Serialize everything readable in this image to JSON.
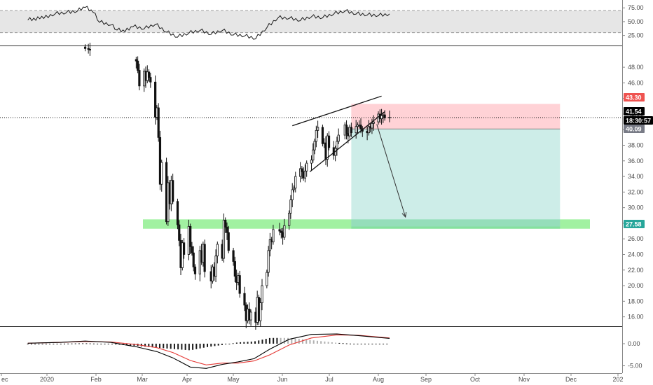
{
  "chart_data": {
    "type": "candlestick",
    "x_axis": {
      "ticks": [
        "ec",
        "2020",
        "Feb",
        "Mar",
        "Apr",
        "May",
        "Jun",
        "Jul",
        "Aug",
        "Sep",
        "Oct",
        "Nov",
        "Dec",
        "202"
      ]
    },
    "price_panel": {
      "y_axis": {
        "ticks": [
          "48.00",
          "46.00",
          "44.00",
          "42.00",
          "40.00",
          "38.00",
          "36.00",
          "34.00",
          "32.00",
          "30.00",
          "28.00",
          "26.00",
          "24.00",
          "22.00",
          "20.00",
          "18.00",
          "16.00"
        ],
        "ylim": [
          14.8,
          50.7
        ]
      },
      "price_labels": [
        {
          "text": "43.30",
          "value": 43.3,
          "color": "#ef5350"
        },
        {
          "text": "41.54",
          "value": 41.54,
          "color": "#000000"
        },
        {
          "text": "18:30:57",
          "value": 40.75,
          "color": "#000000"
        },
        {
          "text": "40.09",
          "value": 40.09,
          "color": "#787b86"
        },
        {
          "text": "27.58",
          "value": 27.58,
          "color": "#26a69a"
        }
      ],
      "support_zone": {
        "low": 27.3,
        "high": 28.5,
        "color": "#90ee90"
      },
      "short_position": {
        "entry": 40.09,
        "stop": 43.3,
        "target": 27.58,
        "start": "Jul 10",
        "end": "Nov 18",
        "risk_color": "#ffcdd2",
        "reward_color": "#c8ebe5"
      },
      "wedge_upper": [
        [
          "Jun 3",
          40.5
        ],
        [
          "Jul 29",
          44.3
        ]
      ],
      "wedge_lower": [
        [
          "Jun 14",
          34.6
        ],
        [
          "Jul 31",
          42.3
        ]
      ],
      "projection_arrow": [
        [
          "Jul 26",
          40.7
        ],
        [
          "Aug 13",
          28.8
        ]
      ],
      "current_price_line": 41.54,
      "close_series": [
        [
          "Jan 25",
          50.4
        ],
        [
          "Jan 27",
          50.3
        ],
        [
          "Jan 28",
          50.2
        ],
        [
          "Feb 26",
          48.8
        ],
        [
          "Feb 27",
          47.6
        ],
        [
          "Feb 28",
          45.6
        ],
        [
          "Mar 2",
          47.5
        ],
        [
          "Mar 3",
          46.3
        ],
        [
          "Mar 4",
          47.4
        ],
        [
          "Mar 5",
          46.7
        ],
        [
          "Mar 6",
          46.1
        ],
        [
          "Mar 9",
          41.6
        ],
        [
          "Mar 10",
          42.8
        ],
        [
          "Mar 11",
          39.0
        ],
        [
          "Mar 12",
          33.0
        ],
        [
          "Mar 13",
          35.8
        ],
        [
          "Mar 16",
          28.2
        ],
        [
          "Mar 17",
          33.2
        ],
        [
          "Mar 18",
          30.5
        ],
        [
          "Mar 19",
          33.5
        ],
        [
          "Mar 20",
          30.8
        ],
        [
          "Mar 23",
          27.8
        ],
        [
          "Mar 24",
          25.8
        ],
        [
          "Mar 25",
          22.3
        ],
        [
          "Mar 26",
          25.5
        ],
        [
          "Mar 27",
          24.0
        ],
        [
          "Mar 30",
          27.6
        ],
        [
          "Mar 31",
          25.0
        ],
        [
          "Apr 1",
          24.2
        ],
        [
          "Apr 2",
          22.4
        ],
        [
          "Apr 3",
          21.5
        ],
        [
          "Apr 6",
          24.5
        ],
        [
          "Apr 7",
          23.0
        ],
        [
          "Apr 8",
          25.3
        ],
        [
          "Apr 9",
          21.8
        ],
        [
          "Apr 13",
          20.6
        ],
        [
          "Apr 14",
          22.4
        ],
        [
          "Apr 15",
          21.2
        ],
        [
          "Apr 16",
          23.8
        ],
        [
          "Apr 17",
          25.3
        ],
        [
          "Apr 20",
          23.5
        ],
        [
          "Apr 21",
          28.4
        ],
        [
          "Apr 22",
          27.5
        ],
        [
          "Apr 23",
          26.8
        ],
        [
          "Apr 24",
          24.5
        ],
        [
          "Apr 27",
          23.1
        ],
        [
          "Apr 28",
          21.2
        ],
        [
          "Apr 29",
          20.4
        ],
        [
          "Apr 30",
          21.3
        ],
        [
          "May 1",
          19.0
        ],
        [
          "May 4",
          17.5
        ],
        [
          "May 5",
          15.5
        ],
        [
          "May 6",
          17.0
        ],
        [
          "May 7",
          15.6
        ],
        [
          "May 8",
          16.6
        ],
        [
          "May 11",
          15.3
        ],
        [
          "May 12",
          18.5
        ],
        [
          "May 13",
          15.5
        ],
        [
          "May 14",
          17.8
        ],
        [
          "May 15",
          20.0
        ],
        [
          "May 18",
          21.7
        ],
        [
          "May 19",
          24.5
        ],
        [
          "May 20",
          25.9
        ],
        [
          "May 21",
          25.6
        ],
        [
          "May 22",
          27.2
        ],
        [
          "May 26",
          27.0
        ],
        [
          "May 27",
          26.8
        ],
        [
          "May 28",
          26.2
        ],
        [
          "May 29",
          27.7
        ],
        [
          "Jun 1",
          29.3
        ],
        [
          "Jun 2",
          31.0
        ],
        [
          "Jun 3",
          32.3
        ],
        [
          "Jun 4",
          32.5
        ],
        [
          "Jun 5",
          34.0
        ],
        [
          "Jun 8",
          35.0
        ],
        [
          "Jun 9",
          34.6
        ],
        [
          "Jun 10",
          33.8
        ],
        [
          "Jun 11",
          34.7
        ],
        [
          "Jun 12",
          35.7
        ],
        [
          "Jun 15",
          36.1
        ],
        [
          "Jun 16",
          37.4
        ],
        [
          "Jun 17",
          38.5
        ],
        [
          "Jun 18",
          39.9
        ],
        [
          "Jun 19",
          40.3
        ],
        [
          "Jun 22",
          38.2
        ],
        [
          "Jun 23",
          38.3
        ],
        [
          "Jun 24",
          36.2
        ],
        [
          "Jun 25",
          39.2
        ],
        [
          "Jun 26",
          37.7
        ],
        [
          "Jun 29",
          36.7
        ],
        [
          "Jun 30",
          37.6
        ],
        [
          "Jul 1",
          38.5
        ],
        [
          "Jul 2",
          39.3
        ],
        [
          "Jul 6",
          40.6
        ],
        [
          "Jul 7",
          39.5
        ],
        [
          "Jul 8",
          39.2
        ],
        [
          "Jul 9",
          40.3
        ],
        [
          "Jul 10",
          39.6
        ],
        [
          "Jul 13",
          40.4
        ],
        [
          "Jul 14",
          40.6
        ],
        [
          "Jul 15",
          40.6
        ],
        [
          "Jul 16",
          40.1
        ],
        [
          "Jul 17",
          39.8
        ],
        [
          "Jul 20",
          39.6
        ],
        [
          "Jul 21",
          40.4
        ],
        [
          "Jul 22",
          40.2
        ],
        [
          "Jul 23",
          40.8
        ],
        [
          "Jul 24",
          41.0
        ],
        [
          "Jul 27",
          42.0
        ],
        [
          "Jul 28",
          41.4
        ],
        [
          "Jul 29",
          41.8
        ],
        [
          "Jul 30",
          41.9
        ],
        [
          "Jul 31",
          41.5
        ],
        [
          "Aug 3",
          41.6
        ]
      ]
    },
    "rsi_panel": {
      "y_axis": {
        "ticks": [
          "75.00",
          "50.00",
          "25.00"
        ],
        "ylim": [
          8,
          88
        ]
      },
      "band": [
        30,
        70
      ],
      "series": [
        [
          "Dec 20",
          54
        ],
        [
          "Dec 30",
          57
        ],
        [
          "Jan 6",
          65
        ],
        [
          "Jan 13",
          67
        ],
        [
          "Jan 20",
          70
        ],
        [
          "Jan 25",
          77
        ],
        [
          "Jan 30",
          68
        ],
        [
          "Feb 3",
          50
        ],
        [
          "Feb 10",
          45
        ],
        [
          "Feb 14",
          36
        ],
        [
          "Feb 19",
          33
        ],
        [
          "Feb 24",
          42
        ],
        [
          "Mar 2",
          38
        ],
        [
          "Mar 9",
          46
        ],
        [
          "Mar 16",
          32
        ],
        [
          "Mar 23",
          23
        ],
        [
          "Mar 30",
          30
        ],
        [
          "Apr 6",
          35
        ],
        [
          "Apr 13",
          28
        ],
        [
          "Apr 20",
          35
        ],
        [
          "Apr 27",
          27
        ],
        [
          "May 4",
          25
        ],
        [
          "May 11",
          20
        ],
        [
          "May 18",
          40
        ],
        [
          "May 25",
          58
        ],
        [
          "Jun 1",
          57
        ],
        [
          "Jun 8",
          53
        ],
        [
          "Jun 15",
          60
        ],
        [
          "Jun 22",
          58
        ],
        [
          "Jun 29",
          65
        ],
        [
          "Jul 6",
          70
        ],
        [
          "Jul 13",
          65
        ],
        [
          "Jul 20",
          63
        ],
        [
          "Jul 27",
          62
        ],
        [
          "Aug 3",
          64
        ]
      ]
    },
    "macd_panel": {
      "y_axis": {
        "ticks": [
          "0.00",
          "-5.00"
        ],
        "ylim": [
          -6.5,
          3.8
        ]
      },
      "macd": [
        [
          "Dec 20",
          0.1
        ],
        [
          "Jan 10",
          0.3
        ],
        [
          "Jan 25",
          0.6
        ],
        [
          "Feb 10",
          0.3
        ],
        [
          "Feb 26",
          -0.7
        ],
        [
          "Mar 10",
          -1.8
        ],
        [
          "Mar 20",
          -3.2
        ],
        [
          "Mar 31",
          -5.3
        ],
        [
          "Apr 10",
          -5.6
        ],
        [
          "Apr 20",
          -4.7
        ],
        [
          "Apr 30",
          -4.1
        ],
        [
          "May 10",
          -3.4
        ],
        [
          "May 20",
          -1.2
        ],
        [
          "Jun 1",
          1.0
        ],
        [
          "Jun 15",
          2.1
        ],
        [
          "Jul 1",
          2.2
        ],
        [
          "Jul 15",
          1.8
        ],
        [
          "Aug 3",
          1.2
        ]
      ],
      "signal": [
        [
          "Dec 20",
          0.1
        ],
        [
          "Jan 10",
          0.3
        ],
        [
          "Jan 25",
          0.5
        ],
        [
          "Feb 10",
          0.4
        ],
        [
          "Feb 26",
          -0.2
        ],
        [
          "Mar 10",
          -0.9
        ],
        [
          "Mar 20",
          -2.0
        ],
        [
          "Mar 31",
          -3.8
        ],
        [
          "Apr 10",
          -4.8
        ],
        [
          "Apr 20",
          -4.4
        ],
        [
          "Apr 30",
          -4.4
        ],
        [
          "May 10",
          -3.9
        ],
        [
          "May 20",
          -2.5
        ],
        [
          "Jun 1",
          -0.3
        ],
        [
          "Jun 15",
          1.3
        ],
        [
          "Jul 1",
          2.0
        ],
        [
          "Jul 15",
          1.9
        ],
        [
          "Aug 3",
          1.3
        ]
      ],
      "colors": {
        "macd": "#000000",
        "signal": "#e53935",
        "hist_pos": "#1a1a1a",
        "hist_neg": "#1a1a1a"
      }
    }
  }
}
